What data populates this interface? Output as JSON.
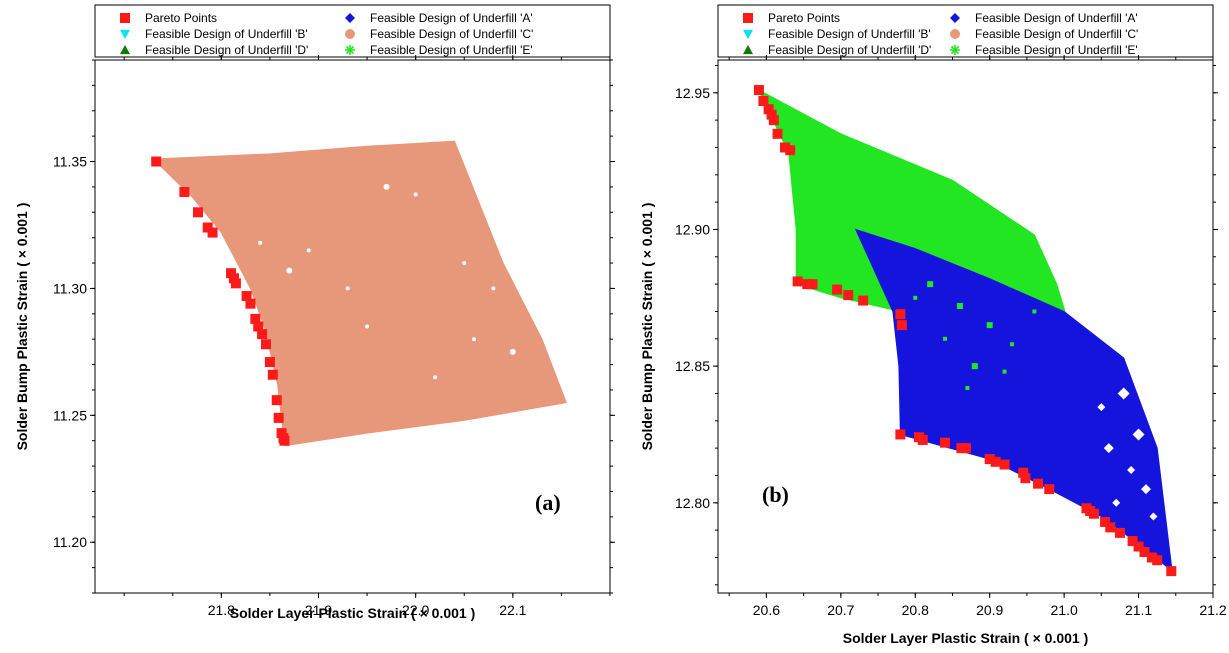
{
  "colors": {
    "pareto": "#ff1a1a",
    "underfill_A": "#1414dc",
    "underfill_B": "#00e5ee",
    "underfill_C": "#e8987a",
    "underfill_D": "#0a7a0a",
    "underfill_E": "#22e622",
    "background": "#ffffff"
  },
  "legend": [
    {
      "label": "Pareto Points",
      "marker": "square",
      "color_key": "pareto"
    },
    {
      "label": "Feasible Design of Underfill 'A'",
      "marker": "diamond",
      "color_key": "underfill_A"
    },
    {
      "label": "Feasible Design of Underfill 'B'",
      "marker": "triangle-down",
      "color_key": "underfill_B"
    },
    {
      "label": "Feasible Design of Underfill 'C'",
      "marker": "circle",
      "color_key": "underfill_C"
    },
    {
      "label": "Feasible Design of Underfill 'D'",
      "marker": "triangle-up",
      "color_key": "underfill_D"
    },
    {
      "label": "Feasible Design of Underfill 'E'",
      "marker": "asterisk",
      "color_key": "underfill_E"
    }
  ],
  "chart_data": [
    {
      "type": "scatter",
      "panel_label": "(a)",
      "xlabel": "Solder Layer Plastic Strain ( × 0.001 )",
      "ylabel": "Solder Bump Plastic Strain ( × 0.001 )",
      "xlim": [
        21.67,
        22.2
      ],
      "ylim": [
        11.18,
        11.39
      ],
      "xticks": [
        21.8,
        21.9,
        22.0,
        22.1
      ],
      "yticks": [
        11.2,
        11.25,
        11.3,
        11.35
      ],
      "xtick_labels": [
        "21.8",
        "21.9",
        "22.0",
        "22.1"
      ],
      "ytick_labels": [
        "11.20",
        "11.25",
        "11.30",
        "11.35"
      ],
      "grid": false,
      "legend_position": "top",
      "regions": [
        {
          "name": "Feasible Design of Underfill 'C'",
          "color_key": "underfill_C",
          "boundary": [
            [
              21.73,
              11.351
            ],
            [
              21.85,
              11.353
            ],
            [
              21.95,
              11.356
            ],
            [
              22.04,
              11.358
            ],
            [
              22.09,
              11.31
            ],
            [
              22.13,
              11.28
            ],
            [
              22.155,
              11.255
            ],
            [
              22.05,
              11.248
            ],
            [
              21.95,
              11.243
            ],
            [
              21.865,
              11.238
            ],
            [
              21.858,
              11.262
            ],
            [
              21.845,
              11.284
            ],
            [
              21.83,
              11.3
            ],
            [
              21.8,
              11.322
            ],
            [
              21.77,
              11.336
            ]
          ]
        }
      ],
      "series": [
        {
          "name": "Pareto Points",
          "color_key": "pareto",
          "marker": "square",
          "x": [
            21.733,
            21.762,
            21.776,
            21.786,
            21.791,
            21.81,
            21.813,
            21.815,
            21.826,
            21.83,
            21.835,
            21.838,
            21.842,
            21.846,
            21.85,
            21.853,
            21.857,
            21.859,
            21.862,
            21.864,
            21.865
          ],
          "y": [
            11.35,
            11.338,
            11.33,
            11.324,
            11.322,
            11.306,
            11.304,
            11.302,
            11.297,
            11.294,
            11.288,
            11.285,
            11.282,
            11.278,
            11.271,
            11.266,
            11.256,
            11.249,
            11.243,
            11.241,
            11.24
          ]
        }
      ]
    },
    {
      "type": "scatter",
      "panel_label": "(b)",
      "xlabel": "Solder Layer Plastic Strain ( × 0.001 )",
      "ylabel": "Solder Bump Plastic Strain ( × 0.001 )",
      "xlim": [
        20.535,
        21.2
      ],
      "ylim": [
        12.767,
        12.962
      ],
      "xticks": [
        20.6,
        20.7,
        20.8,
        20.9,
        21.0,
        21.1,
        21.2
      ],
      "yticks": [
        12.8,
        12.85,
        12.9,
        12.95
      ],
      "xtick_labels": [
        "20.6",
        "20.7",
        "20.8",
        "20.9",
        "21.0",
        "21.1",
        "21.2"
      ],
      "ytick_labels": [
        "12.80",
        "12.85",
        "12.90",
        "12.95"
      ],
      "grid": false,
      "legend_position": "top",
      "regions": [
        {
          "name": "Feasible Design of Underfill 'E'",
          "color_key": "underfill_E",
          "boundary": [
            [
              20.59,
              12.951
            ],
            [
              20.7,
              12.935
            ],
            [
              20.85,
              12.918
            ],
            [
              20.96,
              12.898
            ],
            [
              20.99,
              12.88
            ],
            [
              21.01,
              12.862
            ],
            [
              20.9,
              12.875
            ],
            [
              20.78,
              12.87
            ],
            [
              20.7,
              12.875
            ],
            [
              20.64,
              12.88
            ],
            [
              20.64,
              12.9
            ],
            [
              20.63,
              12.928
            ],
            [
              20.6,
              12.945
            ]
          ]
        },
        {
          "name": "Feasible Design of Underfill 'A'",
          "color_key": "underfill_A",
          "boundary": [
            [
              20.72,
              12.9
            ],
            [
              20.8,
              12.893
            ],
            [
              20.9,
              12.882
            ],
            [
              21.0,
              12.87
            ],
            [
              21.08,
              12.853
            ],
            [
              21.125,
              12.82
            ],
            [
              21.145,
              12.775
            ],
            [
              21.1,
              12.785
            ],
            [
              21.05,
              12.795
            ],
            [
              20.98,
              12.805
            ],
            [
              20.9,
              12.816
            ],
            [
              20.78,
              12.825
            ],
            [
              20.778,
              12.85
            ],
            [
              20.77,
              12.87
            ],
            [
              20.74,
              12.888
            ]
          ]
        }
      ],
      "series": [
        {
          "name": "Pareto Points",
          "color_key": "pareto",
          "marker": "square",
          "x": [
            20.59,
            20.596,
            20.603,
            20.607,
            20.61,
            20.615,
            20.625,
            20.632,
            20.642,
            20.655,
            20.662,
            20.695,
            20.71,
            20.73,
            20.78,
            20.782,
            20.78,
            20.805,
            20.81,
            20.84,
            20.862,
            20.868,
            20.9,
            20.908,
            20.92,
            20.945,
            20.948,
            20.965,
            20.98,
            21.03,
            21.035,
            21.04,
            21.055,
            21.062,
            21.075,
            21.092,
            21.1,
            21.108,
            21.118,
            21.125,
            21.144
          ],
          "y": [
            12.951,
            12.947,
            12.944,
            12.942,
            12.94,
            12.935,
            12.93,
            12.929,
            12.881,
            12.88,
            12.88,
            12.878,
            12.876,
            12.874,
            12.869,
            12.865,
            12.825,
            12.824,
            12.823,
            12.822,
            12.82,
            12.82,
            12.816,
            12.815,
            12.814,
            12.811,
            12.809,
            12.807,
            12.805,
            12.798,
            12.797,
            12.796,
            12.793,
            12.791,
            12.789,
            12.786,
            12.784,
            12.782,
            12.78,
            12.779,
            12.775
          ]
        }
      ]
    }
  ]
}
